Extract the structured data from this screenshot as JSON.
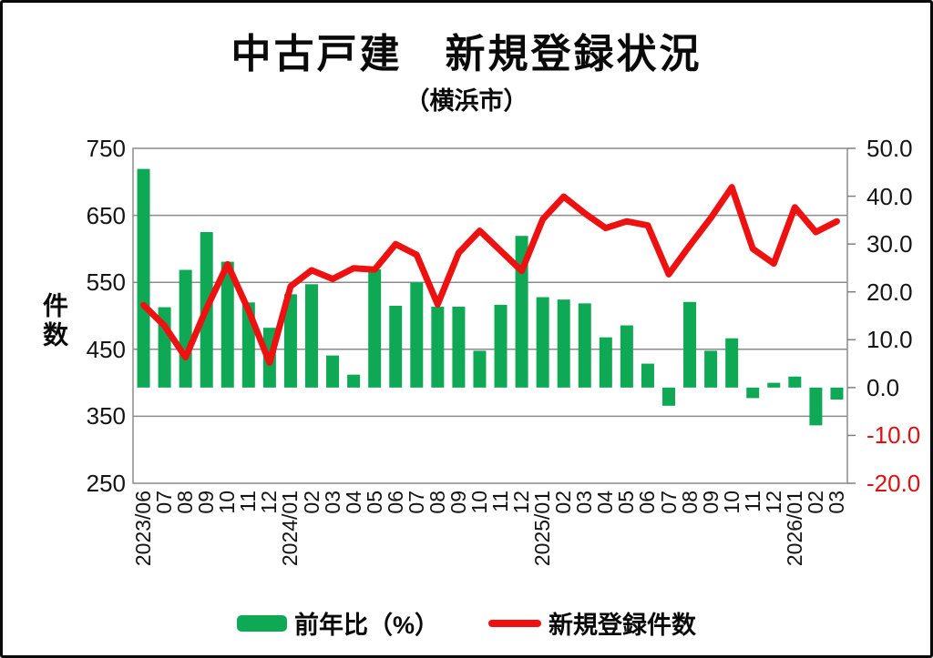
{
  "page": {
    "background": "#ffffff",
    "frame_color": "#0a0a0a"
  },
  "chart_data": {
    "type": "bar+line",
    "title": "中古戸建　新規登録状況",
    "subtitle": "（横浜市）",
    "grid": "horizontal",
    "legend_position": "bottom",
    "categories": [
      "2023/06",
      "07",
      "08",
      "09",
      "10",
      "11",
      "12",
      "2024/01",
      "02",
      "03",
      "04",
      "05",
      "06",
      "07",
      "08",
      "09",
      "10",
      "11",
      "12",
      "2025/01",
      "02",
      "03",
      "04",
      "05",
      "06",
      "07",
      "08",
      "09",
      "10",
      "11",
      "12",
      "2026/01",
      "02",
      "03"
    ],
    "left_axis": {
      "label": "件数",
      "min": 250,
      "max": 750,
      "ticks": [
        750,
        650,
        550,
        450,
        350,
        250
      ]
    },
    "right_axis": {
      "min": -20,
      "max": 50,
      "ticks": [
        "50.0",
        "40.0",
        "30.0",
        "20.0",
        "10.0",
        "0.0",
        "-10.0",
        "-20.0"
      ],
      "negative_tick_color": "#e01010"
    },
    "series": [
      {
        "name": "前年比（%）",
        "type": "bar",
        "axis": "right",
        "color": "#0fa956",
        "values": [
          45.7,
          16.8,
          24.6,
          32.5,
          26.3,
          17.8,
          12.5,
          19.5,
          21.6,
          6.7,
          2.7,
          24.7,
          17.1,
          22.0,
          16.9,
          16.9,
          7.7,
          17.3,
          31.7,
          18.9,
          18.4,
          17.6,
          10.5,
          13.0,
          5.0,
          -3.8,
          17.9,
          7.7,
          10.3,
          -2.2,
          1.0,
          2.3,
          -7.9,
          -2.5
        ]
      },
      {
        "name": "新規登録件数",
        "type": "line",
        "axis": "left",
        "color": "#ee1111",
        "values": [
          516,
          485,
          438,
          511,
          577,
          508,
          430,
          544,
          568,
          555,
          571,
          569,
          607,
          591,
          517,
          594,
          627,
          597,
          567,
          644,
          678,
          653,
          631,
          641,
          635,
          562,
          605,
          646,
          692,
          600,
          578,
          662,
          625,
          641
        ]
      }
    ],
    "legend": {
      "bar_label": "前年比（%）",
      "line_label": "新規登録件数"
    },
    "style": {
      "gridline_color": "#8c8c8c",
      "plot_border_color": "#8c8c8c",
      "axis_tick_color": "#7f7f7f"
    }
  }
}
